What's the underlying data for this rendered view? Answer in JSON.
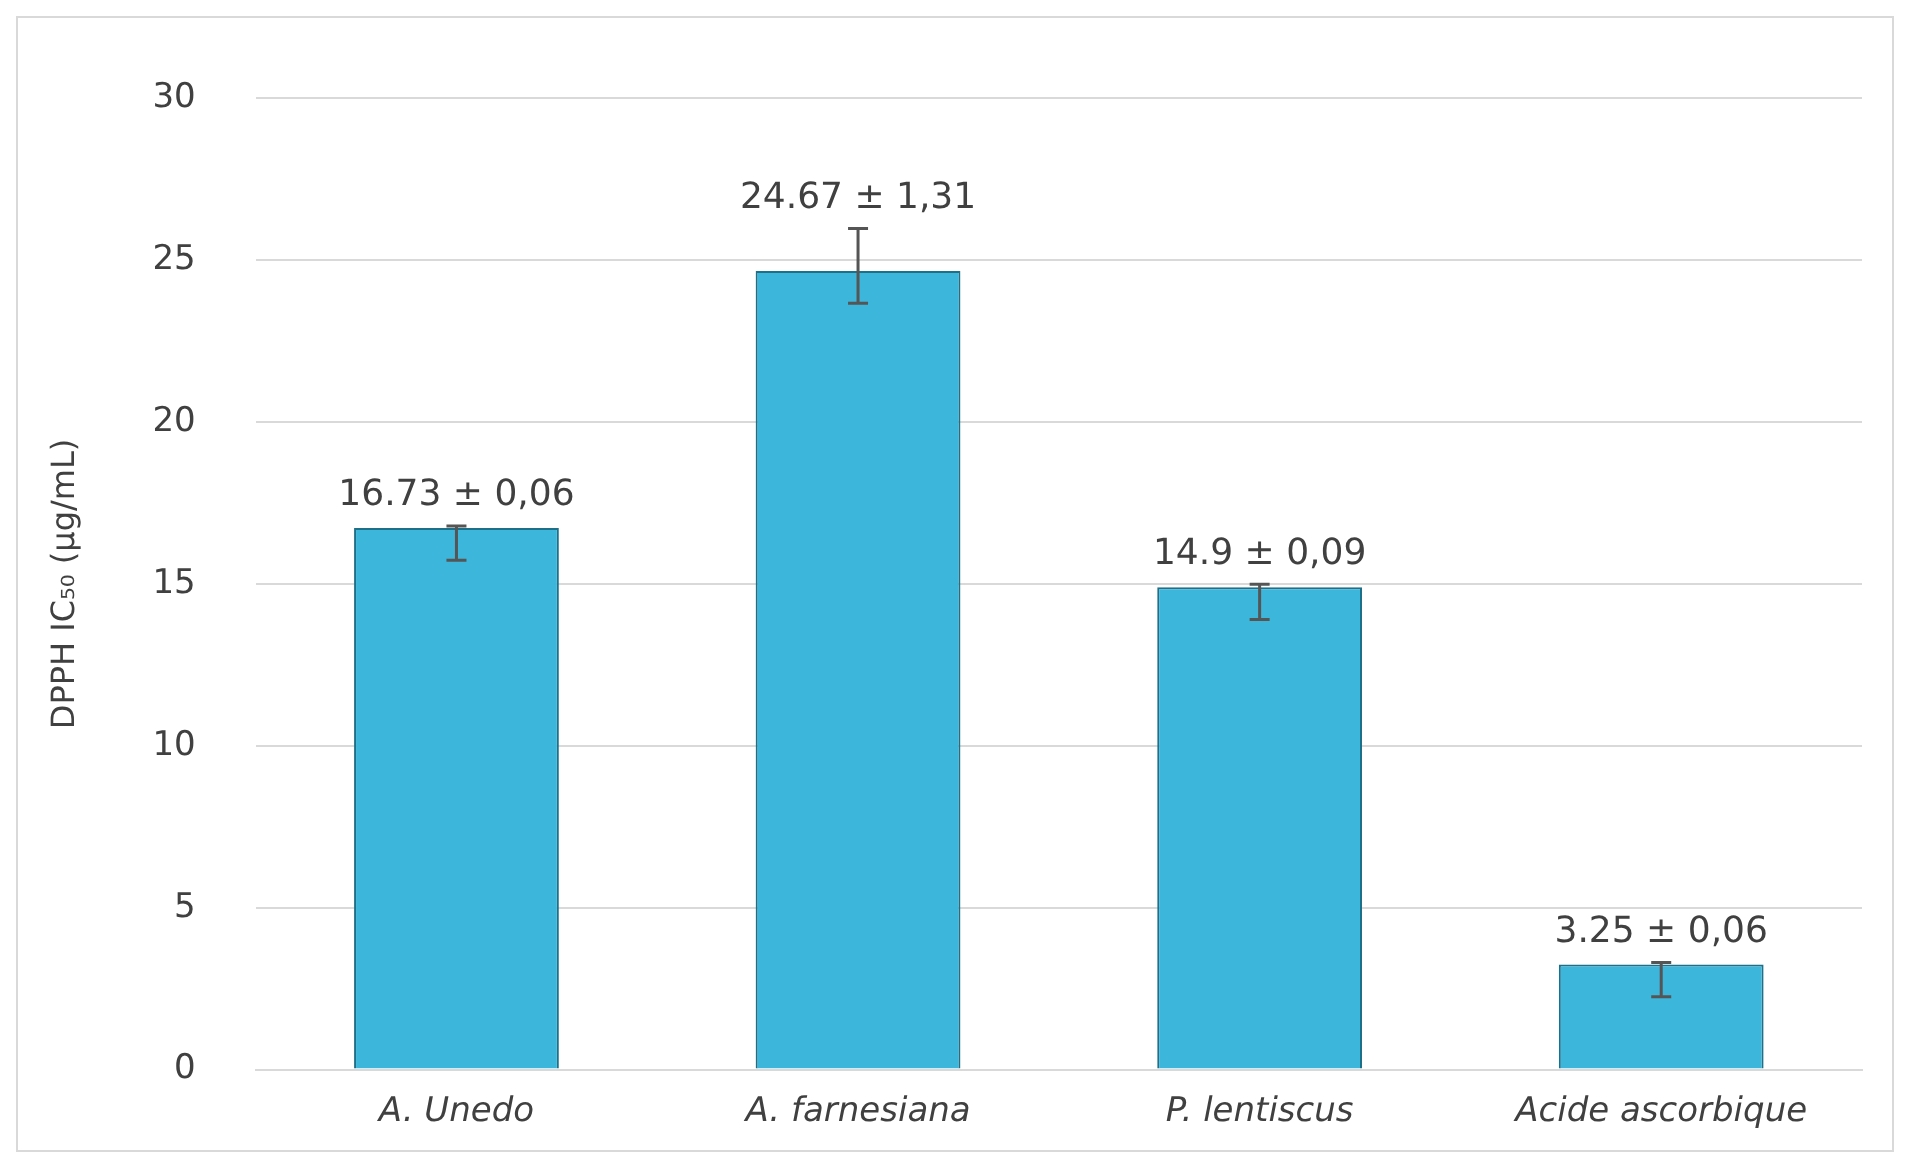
{
  "chart_data": {
    "type": "bar",
    "ylabel": "DPPH IC₅₀ (µg/mL)",
    "categories": [
      "A. Unedo",
      "A. farnesiana",
      "P. lentiscus",
      "Acide ascorbique"
    ],
    "values": [
      16.73,
      24.67,
      14.9,
      3.25
    ],
    "errors": [
      [
        15.73,
        16.79
      ],
      [
        23.67,
        25.98
      ],
      [
        13.9,
        14.99
      ],
      [
        2.25,
        3.31
      ]
    ],
    "value_labels": [
      "16.73 ± 0,06",
      "24.67 ± 1,31",
      "14.9 ± 0,09",
      "3.25 ± 0,06"
    ],
    "color": "#3cb6da",
    "ylim": [
      0,
      30
    ],
    "yticks": [
      0,
      5,
      10,
      15,
      20,
      25,
      30
    ],
    "grid": "y",
    "legend": false
  }
}
